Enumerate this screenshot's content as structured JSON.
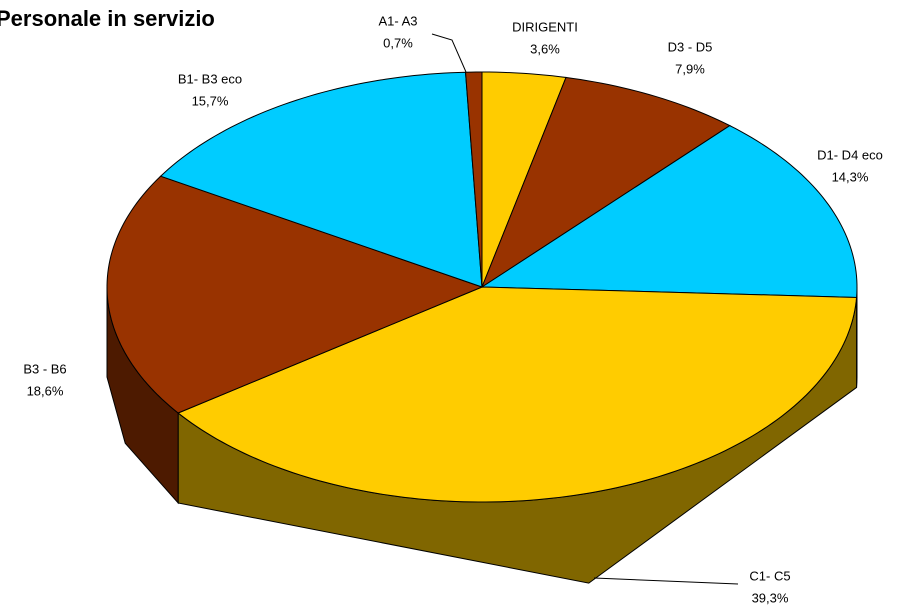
{
  "chart_data": {
    "type": "pie3d",
    "title": "Personale in servizio",
    "categories": [
      "DIRIGENTI",
      "D3 - D5",
      "D1- D4 eco",
      "C1- C5",
      "B3 - B6",
      "B1- B3 eco",
      "A1- A3"
    ],
    "values": [
      3.6,
      7.9,
      14.3,
      39.3,
      18.6,
      15.7,
      0.7
    ],
    "value_labels": [
      "3,6%",
      "7,9%",
      "14,3%",
      "39,3%",
      "18,6%",
      "15,7%",
      "0,7%"
    ],
    "colors": [
      "#FFCC00",
      "#993300",
      "#00CCFF",
      "#FFCC00",
      "#993300",
      "#00CCFF",
      "#993300"
    ]
  }
}
